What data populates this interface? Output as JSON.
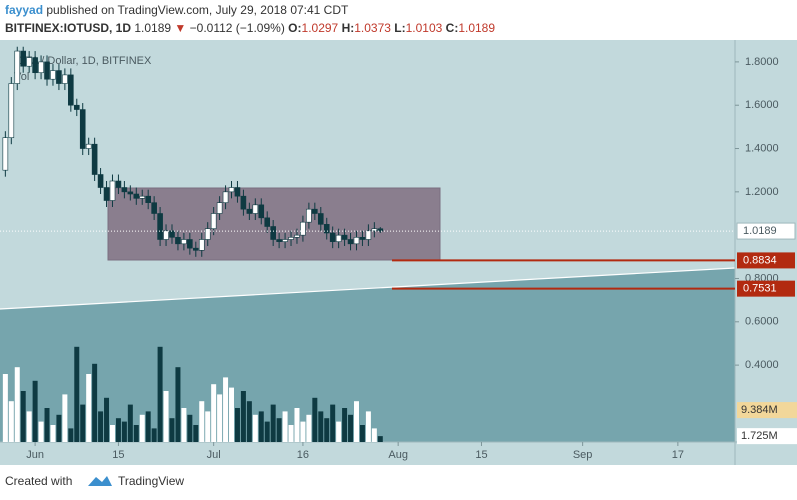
{
  "header": {
    "author": "fayyad",
    "published": "published on TradingView.com, July 29, 2018 07:41 CDT",
    "symbol": "BITFINEX:IOTUSD, 1D",
    "last": "1.0189",
    "arrow": "▼",
    "change": "−0.0112 (−1.09%)",
    "o": "O:",
    "o_value": "1.0297",
    "h": "H:",
    "h_value": "1.0373",
    "l": "L:",
    "l_value": "1.0103",
    "c": "C:",
    "c_value": "1.0189"
  },
  "footer": {
    "created": "Created with",
    "brand": "TradingView"
  },
  "chart_data": {
    "type": "candlestick",
    "title": "IOTA / Dollar, 1D, BITFINEX",
    "volume_title": "Vol",
    "x": [
      -5,
      -4,
      -3,
      -2,
      -1,
      0,
      1,
      2,
      3,
      4,
      5,
      6,
      7,
      8,
      9,
      10,
      11,
      12,
      13,
      14,
      15,
      16,
      17,
      18,
      19,
      20,
      21,
      22,
      23,
      24,
      25,
      26,
      27,
      28,
      29,
      30,
      31,
      32,
      33,
      34,
      35,
      36,
      37,
      38,
      39,
      40,
      41,
      42,
      43,
      44,
      45,
      46,
      47,
      48,
      49,
      50,
      51,
      52,
      53,
      54,
      55,
      56,
      57,
      58
    ],
    "open": [
      1.3,
      1.45,
      1.7,
      1.85,
      1.78,
      1.82,
      1.75,
      1.8,
      1.72,
      1.76,
      1.7,
      1.74,
      1.6,
      1.58,
      1.4,
      1.42,
      1.28,
      1.22,
      1.16,
      1.25,
      1.22,
      1.2,
      1.19,
      1.17,
      1.18,
      1.15,
      1.1,
      0.98,
      1.02,
      0.99,
      0.96,
      0.98,
      0.94,
      0.93,
      0.98,
      1.03,
      1.1,
      1.15,
      1.2,
      1.22,
      1.18,
      1.12,
      1.1,
      1.14,
      1.08,
      1.04,
      0.98,
      0.97,
      0.98,
      0.99,
      1.0,
      1.06,
      1.12,
      1.1,
      1.05,
      1.01,
      0.97,
      1.0,
      0.98,
      0.96,
      0.99,
      0.98,
      1.02,
      1.0297
    ],
    "high": [
      1.48,
      1.73,
      1.87,
      1.87,
      1.85,
      1.85,
      1.83,
      1.83,
      1.79,
      1.79,
      1.77,
      1.77,
      1.63,
      1.61,
      1.45,
      1.45,
      1.31,
      1.25,
      1.28,
      1.28,
      1.25,
      1.23,
      1.22,
      1.21,
      1.21,
      1.18,
      1.13,
      1.05,
      1.05,
      1.02,
      1.01,
      1.01,
      0.97,
      1.01,
      1.06,
      1.13,
      1.18,
      1.23,
      1.25,
      1.25,
      1.21,
      1.15,
      1.17,
      1.17,
      1.11,
      1.07,
      1.01,
      1.01,
      1.02,
      1.03,
      1.09,
      1.15,
      1.15,
      1.13,
      1.08,
      1.04,
      1.03,
      1.03,
      1.01,
      1.02,
      1.02,
      1.05,
      1.06,
      1.0373
    ],
    "low": [
      1.27,
      1.42,
      1.67,
      1.75,
      1.75,
      1.72,
      1.72,
      1.69,
      1.69,
      1.67,
      1.67,
      1.57,
      1.55,
      1.37,
      1.37,
      1.25,
      1.19,
      1.13,
      1.13,
      1.19,
      1.17,
      1.16,
      1.14,
      1.14,
      1.12,
      1.07,
      0.95,
      0.95,
      0.96,
      0.93,
      0.93,
      0.91,
      0.9,
      0.9,
      0.95,
      1.0,
      1.07,
      1.12,
      1.17,
      1.15,
      1.09,
      1.07,
      1.07,
      1.05,
      1.01,
      0.95,
      0.94,
      0.94,
      0.95,
      0.96,
      0.97,
      1.03,
      1.07,
      1.02,
      0.98,
      0.94,
      0.94,
      0.95,
      0.93,
      0.93,
      0.95,
      0.95,
      0.99,
      1.0103
    ],
    "close": [
      1.45,
      1.7,
      1.85,
      1.78,
      1.82,
      1.75,
      1.8,
      1.72,
      1.76,
      1.7,
      1.74,
      1.6,
      1.58,
      1.4,
      1.42,
      1.28,
      1.22,
      1.16,
      1.25,
      1.22,
      1.2,
      1.19,
      1.17,
      1.18,
      1.15,
      1.1,
      0.98,
      1.02,
      0.99,
      0.96,
      0.98,
      0.94,
      0.93,
      0.98,
      1.03,
      1.1,
      1.15,
      1.2,
      1.22,
      1.18,
      1.12,
      1.1,
      1.14,
      1.08,
      1.04,
      0.98,
      0.97,
      0.98,
      0.99,
      1.0,
      1.06,
      1.12,
      1.1,
      1.05,
      1.01,
      0.97,
      1.0,
      0.98,
      0.96,
      0.99,
      0.98,
      1.02,
      1.0297,
      1.0189
    ],
    "volume": [
      20,
      12,
      22,
      15,
      9,
      18,
      6,
      10,
      5,
      8,
      14,
      4,
      28,
      11,
      20,
      23,
      9,
      13,
      5,
      7,
      6,
      11,
      5,
      8,
      9,
      4,
      28,
      15,
      7,
      22,
      10,
      8,
      5,
      12,
      9,
      17,
      14,
      19,
      16,
      10,
      15,
      12,
      8,
      9,
      6,
      11,
      7,
      9,
      5,
      10,
      6,
      8,
      13,
      9,
      7,
      11,
      6,
      10,
      8,
      12,
      5,
      9,
      4,
      1.725
    ],
    "up_color": "#ffffff",
    "down_color": "#0e3a42",
    "xlim": [
      -5.9,
      117.6
    ],
    "xticks": [
      {
        "value": 0,
        "label": "Jun"
      },
      {
        "value": 14,
        "label": "15"
      },
      {
        "value": 30,
        "label": "Jul"
      },
      {
        "value": 45,
        "label": "16"
      },
      {
        "value": 61,
        "label": "Aug"
      },
      {
        "value": 75,
        "label": "15"
      },
      {
        "value": 92,
        "label": "Sep"
      },
      {
        "value": 108,
        "label": "17"
      }
    ],
    "ylim": [
      0.045,
      1.878
    ],
    "yticks": [
      {
        "value": 0.4,
        "label": "0.4000"
      },
      {
        "value": 0.6,
        "label": "0.6000"
      },
      {
        "value": 0.8,
        "label": "0.8000"
      },
      {
        "value": 1.2,
        "label": "1.2000"
      },
      {
        "value": 1.4,
        "label": "1.4000"
      },
      {
        "value": 1.6,
        "label": "1.6000"
      },
      {
        "value": 1.8,
        "label": "1.8000"
      }
    ],
    "volume_lim": [
      0,
      30
    ],
    "last_price": {
      "value": 1.0189,
      "label": "1.0189"
    },
    "levels": [
      {
        "value": 0.8834,
        "label": "0.8834"
      },
      {
        "value": 0.7531,
        "label": "0.7531"
      }
    ],
    "level_color": "#b22a10",
    "volume_ma_last": {
      "value": 9.384,
      "label": "9.384M"
    },
    "volume_last": {
      "value": 1.725,
      "label": "1.725M"
    }
  }
}
